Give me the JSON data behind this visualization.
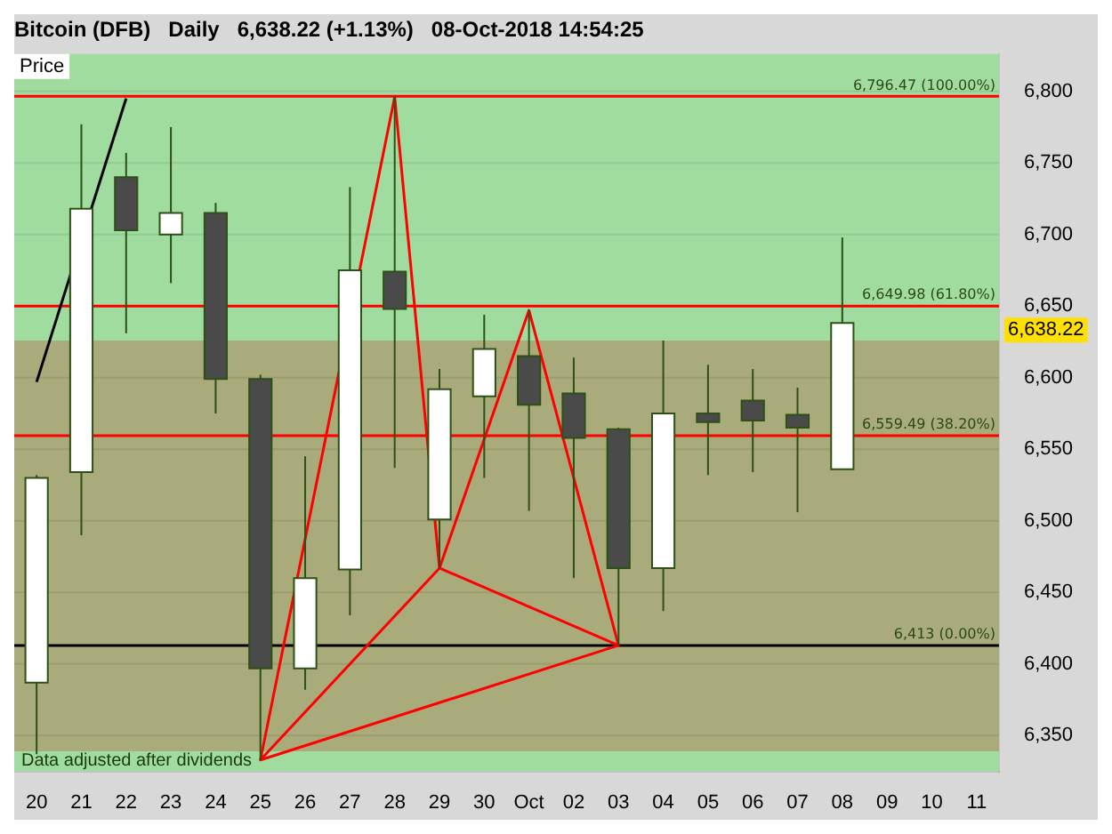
{
  "chart_data": {
    "type": "candlestick",
    "title": "Bitcoin (DFB)   Daily   6,638.22 (+1.13%)   08-Oct-2018 14:54:25",
    "ylabel": "Price",
    "categories": [
      "20",
      "21",
      "22",
      "23",
      "24",
      "25",
      "26",
      "27",
      "28",
      "29",
      "30",
      "Oct",
      "02",
      "03",
      "04",
      "05",
      "06",
      "07",
      "08",
      "09",
      "10",
      "11"
    ],
    "ohlc": [
      [
        6387,
        6532,
        6337,
        6530
      ],
      [
        6534,
        6777,
        6490,
        6718
      ],
      [
        6740,
        6757,
        6631,
        6703
      ],
      [
        6700,
        6775,
        6666,
        6715
      ],
      [
        6715,
        6722,
        6575,
        6599
      ],
      [
        6599,
        6602,
        6333,
        6397
      ],
      [
        6397,
        6545,
        6382,
        6460
      ],
      [
        6466,
        6733,
        6434,
        6675
      ],
      [
        6674,
        6796.47,
        6537,
        6648
      ],
      [
        6501,
        6606,
        6467,
        6592
      ],
      [
        6587,
        6644,
        6530,
        6620
      ],
      [
        6615,
        6647,
        6507,
        6581
      ],
      [
        6589,
        6614,
        6460,
        6558
      ],
      [
        6564,
        6565,
        6413,
        6467
      ],
      [
        6467,
        6626,
        6437,
        6575
      ],
      [
        6575,
        6609,
        6532,
        6569
      ],
      [
        6584,
        6606,
        6534,
        6570
      ],
      [
        6574,
        6593,
        6506,
        6565
      ],
      [
        6536,
        6698,
        6536,
        6638.22
      ],
      null,
      null,
      null
    ],
    "colors": [
      "#ffffff",
      "#ffffff",
      "#4a4a4a",
      "#ffffff",
      "#4a4a4a",
      "#4a4a4a",
      "#ffffff",
      "#ffffff",
      "#4a4a4a",
      "#ffffff",
      "#ffffff",
      "#4a4a4a",
      "#4a4a4a",
      "#4a4a4a",
      "#ffffff",
      "#4a4a4a",
      "#4a4a4a",
      "#4a4a4a",
      "#ffffff",
      null,
      null,
      null
    ],
    "series": [
      {
        "type": "line",
        "color": "#000000",
        "x": [
          "20",
          "22"
        ],
        "values": [
          6597,
          6795
        ]
      },
      {
        "type": "line",
        "color": "#ff0000",
        "x": [
          "25",
          "28",
          "29",
          "Oct",
          "03",
          "29",
          "25",
          "03"
        ],
        "values": [
          6333,
          6796,
          6467,
          6647,
          6413,
          6467,
          6333,
          6413
        ]
      }
    ],
    "bands": [
      {
        "axis": "y",
        "from": 6626,
        "to": 6826,
        "color": "#a0dca0"
      },
      {
        "axis": "y",
        "from": 6339,
        "to": 6626,
        "color": "#a9ab7a"
      },
      {
        "axis": "y",
        "from": 6325,
        "to": 6339,
        "color": "#a0dca0"
      }
    ],
    "ref_lines": [
      {
        "axis": "y",
        "value": 6796.47,
        "label": "6,796.47 (100.00%)",
        "color": "#ff0000"
      },
      {
        "axis": "y",
        "value": 6649.98,
        "label": "6,649.98 (61.80%)",
        "color": "#ff0000"
      },
      {
        "axis": "y",
        "value": 6559.49,
        "label": "6,559.49 (38.20%)",
        "color": "#ff0000"
      },
      {
        "axis": "y",
        "value": 6413,
        "label": "6,413 (0.00%)",
        "color": "#000000"
      }
    ],
    "annotations": [
      "Data adjusted after dividends",
      "6,638.22"
    ],
    "ylim": [
      6325,
      6826
    ],
    "yticks": [
      {
        "value": 6350,
        "label": "6,350"
      },
      {
        "value": 6400,
        "label": "6,400"
      },
      {
        "value": 6450,
        "label": "6,450"
      },
      {
        "value": 6500,
        "label": "6,500"
      },
      {
        "value": 6550,
        "label": "6,550"
      },
      {
        "value": 6600,
        "label": "6,600"
      },
      {
        "value": 6650,
        "label": "6,650"
      },
      {
        "value": 6700,
        "label": "6,700"
      },
      {
        "value": 6750,
        "label": "6,750"
      },
      {
        "value": 6800,
        "label": "6,800"
      }
    ],
    "grid": "y",
    "marker": "none",
    "legend": false
  }
}
